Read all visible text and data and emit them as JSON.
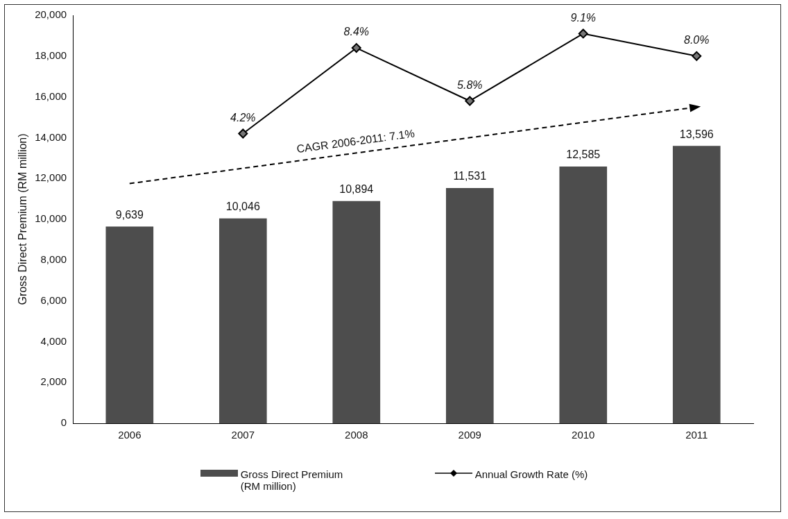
{
  "chart_data": {
    "type": "bar",
    "ylabel": "Gross Direct Premium (RM million)",
    "categories": [
      "2006",
      "2007",
      "2008",
      "2009",
      "2010",
      "2011"
    ],
    "ylim": [
      0,
      20000
    ],
    "yticks": [
      {
        "value": 0,
        "label": "0"
      },
      {
        "value": 2000,
        "label": "2,000"
      },
      {
        "value": 4000,
        "label": "4,000"
      },
      {
        "value": 6000,
        "label": "6,000"
      },
      {
        "value": 8000,
        "label": "8,000"
      },
      {
        "value": 10000,
        "label": "10,000"
      },
      {
        "value": 12000,
        "label": "12,000"
      },
      {
        "value": 14000,
        "label": "14,000"
      },
      {
        "value": 16000,
        "label": "16,000"
      },
      {
        "value": 18000,
        "label": "18,000"
      },
      {
        "value": 20000,
        "label": "20,000"
      }
    ],
    "y2lim": [
      -10,
      10
    ],
    "grid": false,
    "legend": "bottom",
    "series": [
      {
        "name": "Gross Direct Premium (RM million)",
        "color": "#4d4d4d",
        "values": [
          9639,
          10046,
          10894,
          11531,
          12585,
          13596
        ],
        "value_labels": [
          "9,639",
          "10,046",
          "10,894",
          "11,531",
          "12,585",
          "13,596"
        ]
      },
      {
        "name": "Annual Growth Rate (%)",
        "type": "line",
        "axis": "y2",
        "marker": "diamond",
        "color": "#000000",
        "values": [
          null,
          4.2,
          8.4,
          5.8,
          9.1,
          8.0
        ],
        "value_labels": [
          null,
          "4.2%",
          "8.4%",
          "5.8%",
          "9.1%",
          "8.0%"
        ]
      },
      {
        "type": "line",
        "color": "#000000",
        "line_style": "dashed",
        "values": [
          11750,
          null,
          null,
          null,
          null,
          15500
        ]
      }
    ],
    "annotations": [
      "CAGR 2006-2011: 7.1%"
    ]
  }
}
